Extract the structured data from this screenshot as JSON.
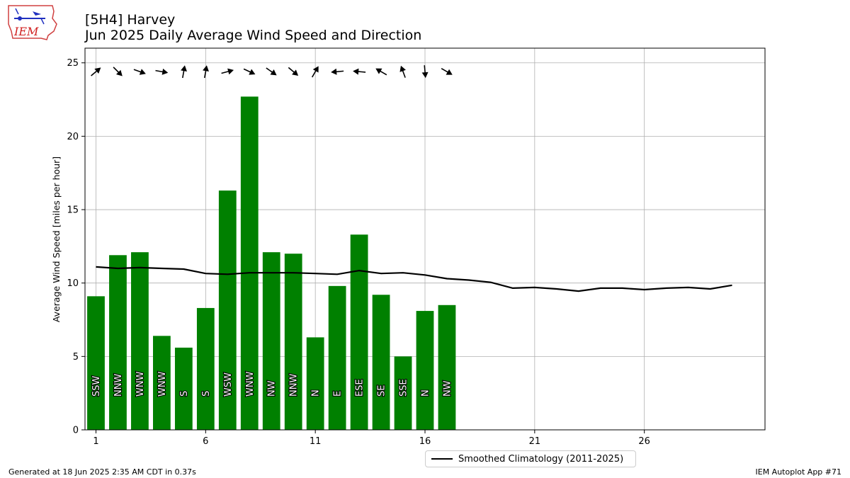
{
  "header": {
    "title_line1": "[5H4] Harvey",
    "title_line2": "Jun 2025 Daily Average Wind Speed and Direction",
    "logo_text": "IEM"
  },
  "legend": {
    "label": "Smoothed Climatology (2011-2025)"
  },
  "footer": {
    "left": "Generated at 18 Jun 2025 2:35 AM CDT in 0.37s",
    "right": "IEM Autoplot App #71"
  },
  "colors": {
    "bar": "#008000",
    "climatology": "#000000",
    "grid": "#b0b0b0"
  },
  "chart_data": {
    "type": "bar",
    "ylabel": "Average Wind Speed [miles per hour]",
    "xlim": [
      0.5,
      31.5
    ],
    "ylim": [
      0,
      26
    ],
    "xticks": [
      1,
      6,
      11,
      16,
      21,
      26
    ],
    "yticks": [
      0,
      5,
      10,
      15,
      20,
      25
    ],
    "grid": true,
    "legend_position": "below-center",
    "days": [
      1,
      2,
      3,
      4,
      5,
      6,
      7,
      8,
      9,
      10,
      11,
      12,
      13,
      14,
      15,
      16,
      17
    ],
    "speeds": [
      9.1,
      11.9,
      12.1,
      6.4,
      5.6,
      8.3,
      16.3,
      22.7,
      12.1,
      12.0,
      6.3,
      9.8,
      13.3,
      9.2,
      5.0,
      8.1,
      8.5
    ],
    "directions": [
      "SSW",
      "NNW",
      "WNW",
      "WNW",
      "S",
      "S",
      "WSW",
      "WNW",
      "NW",
      "NNW",
      "N",
      "E",
      "ESE",
      "SE",
      "SSE",
      "N",
      "NW"
    ],
    "arrow_angles_deg": [
      40,
      -45,
      -20,
      -10,
      80,
      80,
      15,
      -25,
      -35,
      -40,
      60,
      185,
      175,
      150,
      110,
      -85,
      -30
    ],
    "climatology": {
      "name": "Smoothed Climatology (2011-2025)",
      "x": [
        1,
        2,
        3,
        4,
        5,
        6,
        7,
        8,
        9,
        10,
        11,
        12,
        13,
        14,
        15,
        16,
        17,
        18,
        19,
        20,
        21,
        22,
        23,
        24,
        25,
        26,
        27,
        28,
        29,
        30
      ],
      "y": [
        11.1,
        11.0,
        11.05,
        11.0,
        10.95,
        10.65,
        10.6,
        10.7,
        10.7,
        10.7,
        10.65,
        10.6,
        10.85,
        10.65,
        10.7,
        10.55,
        10.3,
        10.2,
        10.05,
        9.65,
        9.7,
        9.6,
        9.45,
        9.65,
        9.65,
        9.55,
        9.65,
        9.7,
        9.6,
        9.85
      ]
    }
  }
}
